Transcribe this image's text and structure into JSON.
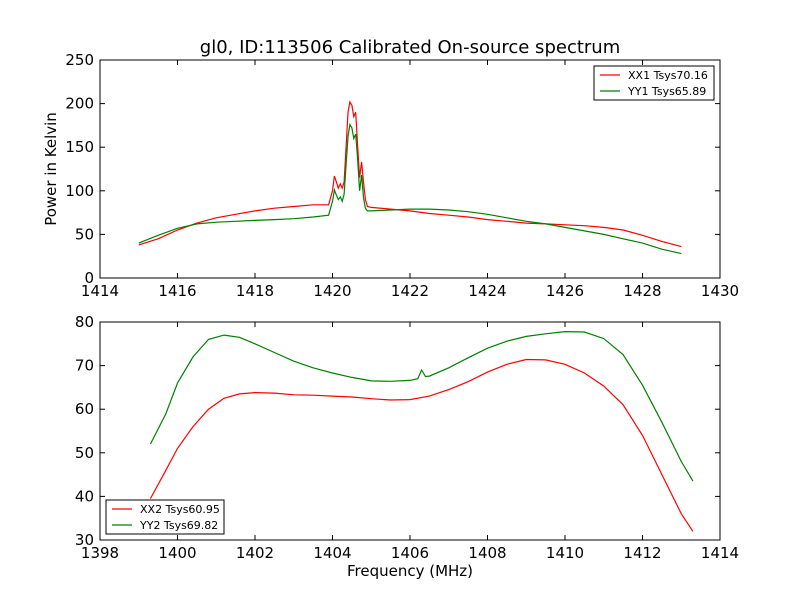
{
  "figure_title": "gl0, ID:113506 Calibrated On-source spectrum",
  "chart_data": [
    {
      "type": "line",
      "title": "gl0, ID:113506 Calibrated On-source spectrum",
      "xlabel": "",
      "ylabel": "Power in Kelvin",
      "xlim": [
        1414,
        1430
      ],
      "ylim": [
        0,
        250
      ],
      "xticks": [
        1414,
        1416,
        1418,
        1420,
        1422,
        1424,
        1426,
        1428,
        1430
      ],
      "yticks": [
        0,
        50,
        100,
        150,
        200,
        250
      ],
      "legend": "top-right",
      "series": [
        {
          "name": "XX1 Tsys70.16",
          "color": "#ff0000",
          "x": [
            1415.0,
            1415.5,
            1416.0,
            1416.5,
            1417.0,
            1417.5,
            1418.0,
            1418.5,
            1419.0,
            1419.5,
            1419.9,
            1420.0,
            1420.05,
            1420.1,
            1420.15,
            1420.2,
            1420.25,
            1420.3,
            1420.35,
            1420.4,
            1420.45,
            1420.5,
            1420.55,
            1420.6,
            1420.65,
            1420.7,
            1420.75,
            1420.8,
            1420.85,
            1420.9,
            1421.0,
            1421.5,
            1422.0,
            1422.5,
            1423.0,
            1423.5,
            1424.0,
            1424.5,
            1425.0,
            1425.5,
            1426.0,
            1426.5,
            1427.0,
            1427.5,
            1428.0,
            1428.5,
            1429.0
          ],
          "y": [
            38,
            45,
            55,
            63,
            69,
            73,
            77,
            80,
            82,
            84,
            84,
            100,
            117,
            110,
            103,
            108,
            103,
            110,
            150,
            190,
            202,
            198,
            185,
            190,
            150,
            115,
            133,
            110,
            90,
            82,
            81,
            79,
            77,
            74,
            72,
            70,
            67,
            65,
            63,
            62,
            61,
            60,
            58,
            55,
            49,
            42,
            36
          ]
        },
        {
          "name": "YY1 Tsys65.89",
          "color": "#008000",
          "x": [
            1415.0,
            1415.5,
            1416.0,
            1416.5,
            1417.0,
            1417.5,
            1418.0,
            1418.5,
            1419.0,
            1419.5,
            1419.9,
            1420.0,
            1420.05,
            1420.1,
            1420.15,
            1420.2,
            1420.25,
            1420.3,
            1420.35,
            1420.4,
            1420.45,
            1420.5,
            1420.55,
            1420.6,
            1420.65,
            1420.7,
            1420.75,
            1420.8,
            1420.85,
            1420.9,
            1421.0,
            1421.5,
            1422.0,
            1422.5,
            1423.0,
            1423.5,
            1424.0,
            1424.5,
            1425.0,
            1425.5,
            1426.0,
            1426.5,
            1427.0,
            1427.5,
            1428.0,
            1428.5,
            1429.0
          ],
          "y": [
            40,
            49,
            57,
            62,
            64,
            65,
            66,
            67,
            68,
            70,
            72,
            88,
            101,
            95,
            90,
            93,
            88,
            96,
            130,
            162,
            176,
            172,
            160,
            165,
            135,
            100,
            118,
            92,
            80,
            77,
            77,
            78,
            79,
            79,
            78,
            76,
            73,
            69,
            65,
            62,
            58,
            54,
            50,
            45,
            40,
            33,
            28
          ]
        }
      ]
    },
    {
      "type": "line",
      "title": "",
      "xlabel": "Frequency (MHz)",
      "ylabel": "",
      "xlim": [
        1398,
        1414
      ],
      "ylim": [
        30,
        80
      ],
      "xticks": [
        1398,
        1400,
        1402,
        1404,
        1406,
        1408,
        1410,
        1412,
        1414
      ],
      "yticks": [
        30,
        40,
        50,
        60,
        70,
        80
      ],
      "legend": "bottom-left",
      "series": [
        {
          "name": "XX2 Tsys60.95",
          "color": "#ff0000",
          "x": [
            1399.3,
            1399.7,
            1400.0,
            1400.4,
            1400.8,
            1401.2,
            1401.6,
            1402.0,
            1402.5,
            1403.0,
            1403.5,
            1404.0,
            1404.5,
            1405.0,
            1405.5,
            1406.0,
            1406.5,
            1407.0,
            1407.5,
            1408.0,
            1408.5,
            1409.0,
            1409.5,
            1410.0,
            1410.5,
            1411.0,
            1411.5,
            1412.0,
            1412.5,
            1413.0,
            1413.3
          ],
          "y": [
            39.5,
            46,
            51,
            56,
            60,
            62.5,
            63.5,
            63.8,
            63.7,
            63.3,
            63.2,
            63.0,
            62.8,
            62.4,
            62.1,
            62.2,
            63.0,
            64.5,
            66.3,
            68.5,
            70.3,
            71.4,
            71.3,
            70.3,
            68.3,
            65.3,
            61.0,
            54.0,
            45.0,
            36.0,
            32.0
          ]
        },
        {
          "name": "YY2 Tsys69.82",
          "color": "#008000",
          "x": [
            1399.3,
            1399.7,
            1400.0,
            1400.4,
            1400.8,
            1401.2,
            1401.6,
            1402.0,
            1402.5,
            1403.0,
            1403.5,
            1404.0,
            1404.5,
            1405.0,
            1405.5,
            1406.0,
            1406.2,
            1406.3,
            1406.4,
            1406.5,
            1407.0,
            1407.5,
            1408.0,
            1408.5,
            1409.0,
            1409.5,
            1410.0,
            1410.5,
            1411.0,
            1411.5,
            1412.0,
            1412.5,
            1413.0,
            1413.3
          ],
          "y": [
            52,
            59,
            66,
            72,
            76,
            77,
            76.5,
            75,
            73,
            71,
            69.5,
            68.3,
            67.3,
            66.5,
            66.4,
            66.6,
            67,
            69,
            67.5,
            67.6,
            69.5,
            71.8,
            74.0,
            75.6,
            76.7,
            77.3,
            77.8,
            77.7,
            76.2,
            72.5,
            65.5,
            57,
            48,
            43.5
          ]
        }
      ]
    }
  ]
}
